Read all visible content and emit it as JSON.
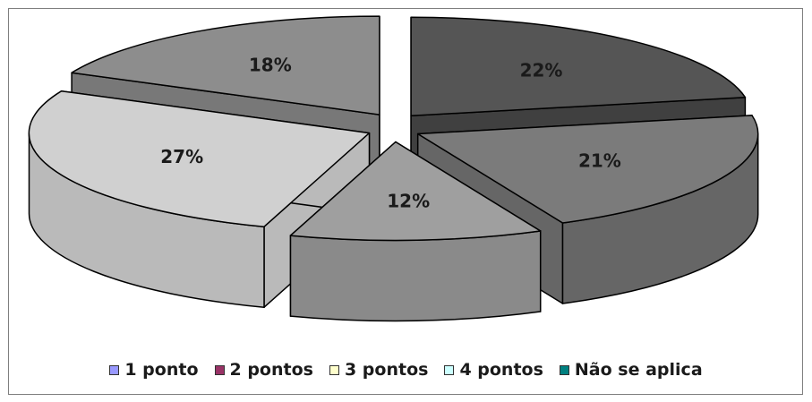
{
  "chart_data": {
    "type": "pie",
    "style": "3d-exploded",
    "title": "",
    "slices": [
      {
        "label": "1 ponto",
        "value": 22,
        "label_text": "22%"
      },
      {
        "label": "2 pontos",
        "value": 21,
        "label_text": "21%"
      },
      {
        "label": "3 pontos",
        "value": 12,
        "label_text": "12%"
      },
      {
        "label": "4 pontos",
        "value": 27,
        "label_text": "27%"
      },
      {
        "label": "Não se aplica",
        "value": 18,
        "label_text": "18%"
      }
    ],
    "legend": {
      "placement": "bottom",
      "entries": [
        {
          "label": "1 ponto",
          "color": "#9999ff"
        },
        {
          "label": "2 pontos",
          "color": "#993366"
        },
        {
          "label": "3 pontos",
          "color": "#ffffcc"
        },
        {
          "label": "4 pontos",
          "color": "#ccffff"
        },
        {
          "label": "Não se aplica",
          "color": "#008080"
        }
      ]
    },
    "slice_colors": {
      "top": [
        "#555555",
        "#7b7b7b",
        "#9f9f9f",
        "#d0d0d0",
        "#8d8d8d"
      ],
      "side": [
        "#404040",
        "#666666",
        "#8a8a8a",
        "#bababa",
        "#787878"
      ]
    }
  }
}
